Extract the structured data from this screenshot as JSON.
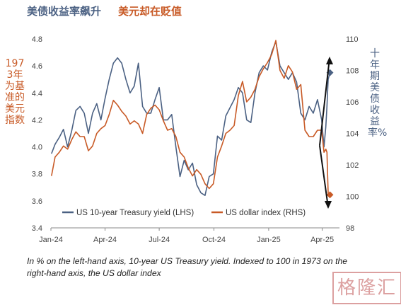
{
  "title": {
    "left": "美债收益率飙升",
    "right": "美元却在贬值"
  },
  "lhs_label": "1973年为基准的美元指数",
  "rhs_label": "十年期美债收益率%",
  "caption": "In % on the left-hand axis, 10-year US Treasury yield. Indexed to 100 in 1973 on the right-hand axis, the US dollar index",
  "watermark": "格隆汇",
  "colors": {
    "treasury": "#4b6183",
    "dollar": "#c85a26",
    "title_left": "#4b6183",
    "title_right": "#c85a26",
    "axis": "#888888",
    "arrow": "#111111"
  },
  "chart_data": {
    "type": "line",
    "x_ticks": [
      "Jan-24",
      "Apr-24",
      "Jul-24",
      "Oct-24",
      "Jan-25",
      "Apr-25"
    ],
    "x_range": [
      "2024-01-01",
      "2025-04-30"
    ],
    "y_left": {
      "ticks": [
        3.4,
        3.6,
        3.8,
        4.0,
        4.2,
        4.4,
        4.6,
        4.8
      ],
      "range": [
        3.4,
        4.8
      ]
    },
    "y_right": {
      "ticks": [
        98,
        100,
        102,
        104,
        106,
        108,
        110
      ],
      "range": [
        98,
        110
      ]
    },
    "legend_position": "bottom-left",
    "series": [
      {
        "name": "US 10-year Treasury yield (LHS)",
        "axis": "left",
        "points": [
          [
            "2024-01-02",
            3.95
          ],
          [
            "2024-01-08",
            4.02
          ],
          [
            "2024-01-15",
            4.07
          ],
          [
            "2024-01-22",
            4.13
          ],
          [
            "2024-01-29",
            4.0
          ],
          [
            "2024-02-05",
            4.12
          ],
          [
            "2024-02-12",
            4.27
          ],
          [
            "2024-02-19",
            4.3
          ],
          [
            "2024-02-26",
            4.25
          ],
          [
            "2024-03-04",
            4.1
          ],
          [
            "2024-03-11",
            4.25
          ],
          [
            "2024-03-18",
            4.32
          ],
          [
            "2024-03-25",
            4.2
          ],
          [
            "2024-04-01",
            4.36
          ],
          [
            "2024-04-08",
            4.5
          ],
          [
            "2024-04-15",
            4.62
          ],
          [
            "2024-04-22",
            4.66
          ],
          [
            "2024-04-29",
            4.62
          ],
          [
            "2024-05-06",
            4.5
          ],
          [
            "2024-05-13",
            4.4
          ],
          [
            "2024-05-20",
            4.45
          ],
          [
            "2024-05-27",
            4.62
          ],
          [
            "2024-06-03",
            4.3
          ],
          [
            "2024-06-10",
            4.25
          ],
          [
            "2024-06-17",
            4.25
          ],
          [
            "2024-06-24",
            4.35
          ],
          [
            "2024-07-01",
            4.44
          ],
          [
            "2024-07-08",
            4.2
          ],
          [
            "2024-07-15",
            4.2
          ],
          [
            "2024-07-22",
            4.24
          ],
          [
            "2024-07-29",
            4.0
          ],
          [
            "2024-08-05",
            3.78
          ],
          [
            "2024-08-12",
            3.9
          ],
          [
            "2024-08-19",
            3.83
          ],
          [
            "2024-08-26",
            3.88
          ],
          [
            "2024-09-02",
            3.72
          ],
          [
            "2024-09-09",
            3.66
          ],
          [
            "2024-09-16",
            3.64
          ],
          [
            "2024-09-23",
            3.78
          ],
          [
            "2024-09-30",
            3.8
          ],
          [
            "2024-10-07",
            4.08
          ],
          [
            "2024-10-14",
            4.05
          ],
          [
            "2024-10-21",
            4.23
          ],
          [
            "2024-10-28",
            4.29
          ],
          [
            "2024-11-04",
            4.35
          ],
          [
            "2024-11-11",
            4.44
          ],
          [
            "2024-11-18",
            4.4
          ],
          [
            "2024-11-25",
            4.2
          ],
          [
            "2024-12-02",
            4.18
          ],
          [
            "2024-12-09",
            4.4
          ],
          [
            "2024-12-16",
            4.55
          ],
          [
            "2024-12-23",
            4.6
          ],
          [
            "2024-12-30",
            4.57
          ],
          [
            "2025-01-06",
            4.7
          ],
          [
            "2025-01-13",
            4.78
          ],
          [
            "2025-01-20",
            4.6
          ],
          [
            "2025-01-27",
            4.55
          ],
          [
            "2025-02-03",
            4.5
          ],
          [
            "2025-02-10",
            4.55
          ],
          [
            "2025-02-17",
            4.48
          ],
          [
            "2025-02-24",
            4.25
          ],
          [
            "2025-03-03",
            4.2
          ],
          [
            "2025-03-10",
            4.3
          ],
          [
            "2025-03-17",
            4.25
          ],
          [
            "2025-03-24",
            4.35
          ],
          [
            "2025-03-31",
            4.2
          ],
          [
            "2025-04-04",
            4.0
          ],
          [
            "2025-04-07",
            4.15
          ],
          [
            "2025-04-09",
            4.3
          ],
          [
            "2025-04-11",
            4.5
          ],
          [
            "2025-04-14",
            4.55
          ]
        ]
      },
      {
        "name": "US dollar index (RHS)",
        "axis": "right",
        "points": [
          [
            "2024-01-02",
            101.3
          ],
          [
            "2024-01-08",
            102.5
          ],
          [
            "2024-01-15",
            102.8
          ],
          [
            "2024-01-22",
            103.2
          ],
          [
            "2024-01-29",
            103.0
          ],
          [
            "2024-02-05",
            103.6
          ],
          [
            "2024-02-12",
            104.1
          ],
          [
            "2024-02-19",
            103.8
          ],
          [
            "2024-02-26",
            103.8
          ],
          [
            "2024-03-04",
            102.9
          ],
          [
            "2024-03-11",
            103.2
          ],
          [
            "2024-03-18",
            104.0
          ],
          [
            "2024-03-25",
            104.3
          ],
          [
            "2024-04-01",
            104.5
          ],
          [
            "2024-04-08",
            105.2
          ],
          [
            "2024-04-15",
            106.1
          ],
          [
            "2024-04-22",
            105.8
          ],
          [
            "2024-04-29",
            105.4
          ],
          [
            "2024-05-06",
            105.1
          ],
          [
            "2024-05-13",
            104.6
          ],
          [
            "2024-05-20",
            104.8
          ],
          [
            "2024-05-27",
            104.6
          ],
          [
            "2024-06-03",
            104.0
          ],
          [
            "2024-06-10",
            105.2
          ],
          [
            "2024-06-17",
            105.6
          ],
          [
            "2024-06-24",
            105.8
          ],
          [
            "2024-07-01",
            105.5
          ],
          [
            "2024-07-08",
            104.8
          ],
          [
            "2024-07-15",
            104.2
          ],
          [
            "2024-07-22",
            104.3
          ],
          [
            "2024-07-29",
            103.8
          ],
          [
            "2024-08-05",
            102.8
          ],
          [
            "2024-08-12",
            102.5
          ],
          [
            "2024-08-19",
            101.8
          ],
          [
            "2024-08-26",
            101.3
          ],
          [
            "2024-09-02",
            101.7
          ],
          [
            "2024-09-09",
            101.4
          ],
          [
            "2024-09-16",
            100.8
          ],
          [
            "2024-09-23",
            100.5
          ],
          [
            "2024-09-30",
            100.8
          ],
          [
            "2024-10-07",
            102.5
          ],
          [
            "2024-10-14",
            103.2
          ],
          [
            "2024-10-21",
            104.0
          ],
          [
            "2024-10-28",
            104.2
          ],
          [
            "2024-11-04",
            104.5
          ],
          [
            "2024-11-11",
            106.4
          ],
          [
            "2024-11-18",
            107.3
          ],
          [
            "2024-11-25",
            106.0
          ],
          [
            "2024-12-02",
            106.3
          ],
          [
            "2024-12-09",
            106.8
          ],
          [
            "2024-12-16",
            107.6
          ],
          [
            "2024-12-23",
            108.1
          ],
          [
            "2024-12-30",
            108.5
          ],
          [
            "2025-01-06",
            109.0
          ],
          [
            "2025-01-13",
            109.9
          ],
          [
            "2025-01-20",
            108.0
          ],
          [
            "2025-01-27",
            107.5
          ],
          [
            "2025-02-03",
            108.3
          ],
          [
            "2025-02-10",
            107.9
          ],
          [
            "2025-02-17",
            106.8
          ],
          [
            "2025-02-24",
            107.1
          ],
          [
            "2025-03-03",
            104.2
          ],
          [
            "2025-03-10",
            103.8
          ],
          [
            "2025-03-17",
            103.8
          ],
          [
            "2025-03-24",
            104.2
          ],
          [
            "2025-03-31",
            104.2
          ],
          [
            "2025-04-04",
            102.8
          ],
          [
            "2025-04-07",
            103.0
          ],
          [
            "2025-04-09",
            102.8
          ],
          [
            "2025-04-11",
            100.2
          ],
          [
            "2025-04-14",
            100.1
          ]
        ]
      }
    ]
  }
}
